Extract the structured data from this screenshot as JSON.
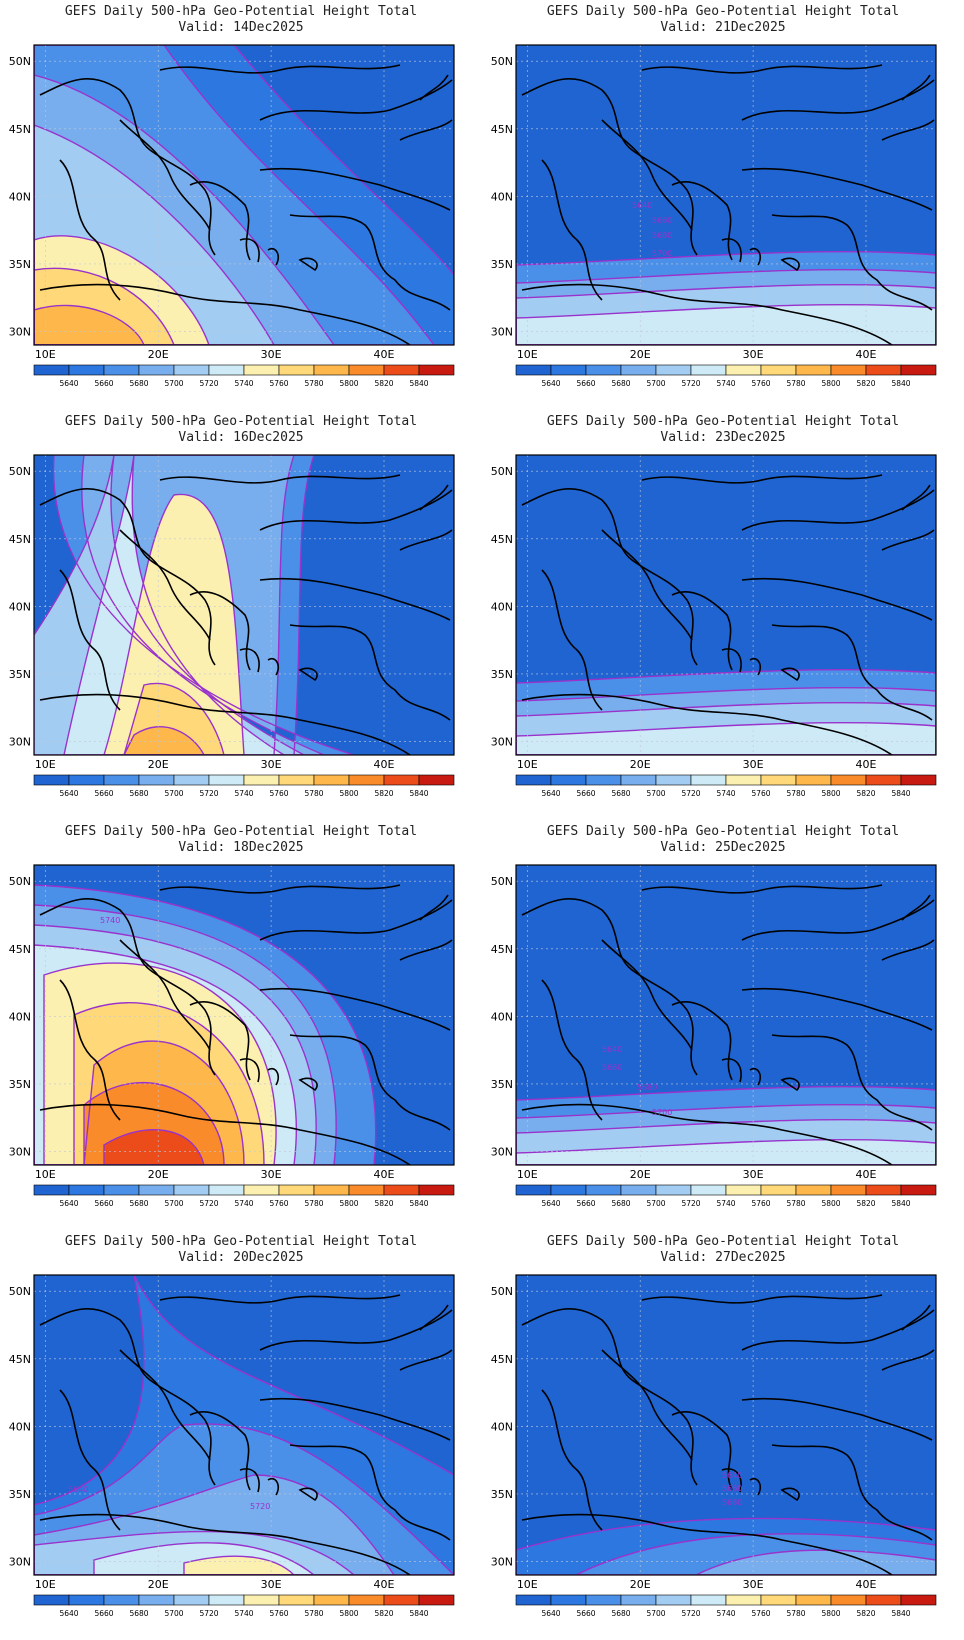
{
  "panels": [
    {
      "title": "GEFS Daily 500-hPa Geo-Potential Height Total",
      "valid": "Valid: 14Dec2025",
      "pattern": "ridge-sw",
      "contour_labels": []
    },
    {
      "title": "GEFS Daily 500-hPa Geo-Potential Height Total",
      "valid": "Valid: 21Dec2025",
      "pattern": "south-bands",
      "contour_labels": [
        "5640",
        "5660",
        "5680",
        "5700"
      ]
    },
    {
      "title": "GEFS Daily 500-hPa Geo-Potential Height Total",
      "valid": "Valid: 16Dec2025",
      "pattern": "ridge-center",
      "contour_labels": []
    },
    {
      "title": "GEFS Daily 500-hPa Geo-Potential Height Total",
      "valid": "Valid: 23Dec2025",
      "pattern": "south-bands-flat",
      "contour_labels": []
    },
    {
      "title": "GEFS Daily 500-hPa Geo-Potential Height Total",
      "valid": "Valid: 18Dec2025",
      "pattern": "ridge-strong",
      "contour_labels": [
        "5740"
      ]
    },
    {
      "title": "GEFS Daily 500-hPa Geo-Potential Height Total",
      "valid": "Valid: 25Dec2025",
      "pattern": "south-bands-low",
      "contour_labels": [
        "5640",
        "5660",
        "5680",
        "5700"
      ]
    },
    {
      "title": "GEFS Daily 500-hPa Geo-Potential Height Total",
      "valid": "Valid: 20Dec2025",
      "pattern": "trough-weak-ridge",
      "contour_labels": [
        "5640",
        "5720"
      ]
    },
    {
      "title": "GEFS Daily 500-hPa Geo-Potential Height Total",
      "valid": "Valid: 27Dec2025",
      "pattern": "south-arc",
      "contour_labels": [
        "5640",
        "5660",
        "5680"
      ]
    }
  ],
  "axes": {
    "lat_labels": [
      "50N",
      "45N",
      "40N",
      "35N",
      "30N"
    ],
    "lon_labels": [
      "10E",
      "20E",
      "30E",
      "40E"
    ]
  },
  "colorbar": {
    "levels": [
      "5640",
      "5660",
      "5680",
      "5700",
      "5720",
      "5740",
      "5760",
      "5780",
      "5800",
      "5820",
      "5840"
    ],
    "colors": [
      "#1f64d0",
      "#2c78e0",
      "#4a90e8",
      "#78aeee",
      "#a3ccf2",
      "#cdeaf6",
      "#fbf0b0",
      "#ffd879",
      "#fdb74a",
      "#f98b2a",
      "#ec4c1a",
      "#c81a10"
    ]
  },
  "contour_color": "#9933cc"
}
